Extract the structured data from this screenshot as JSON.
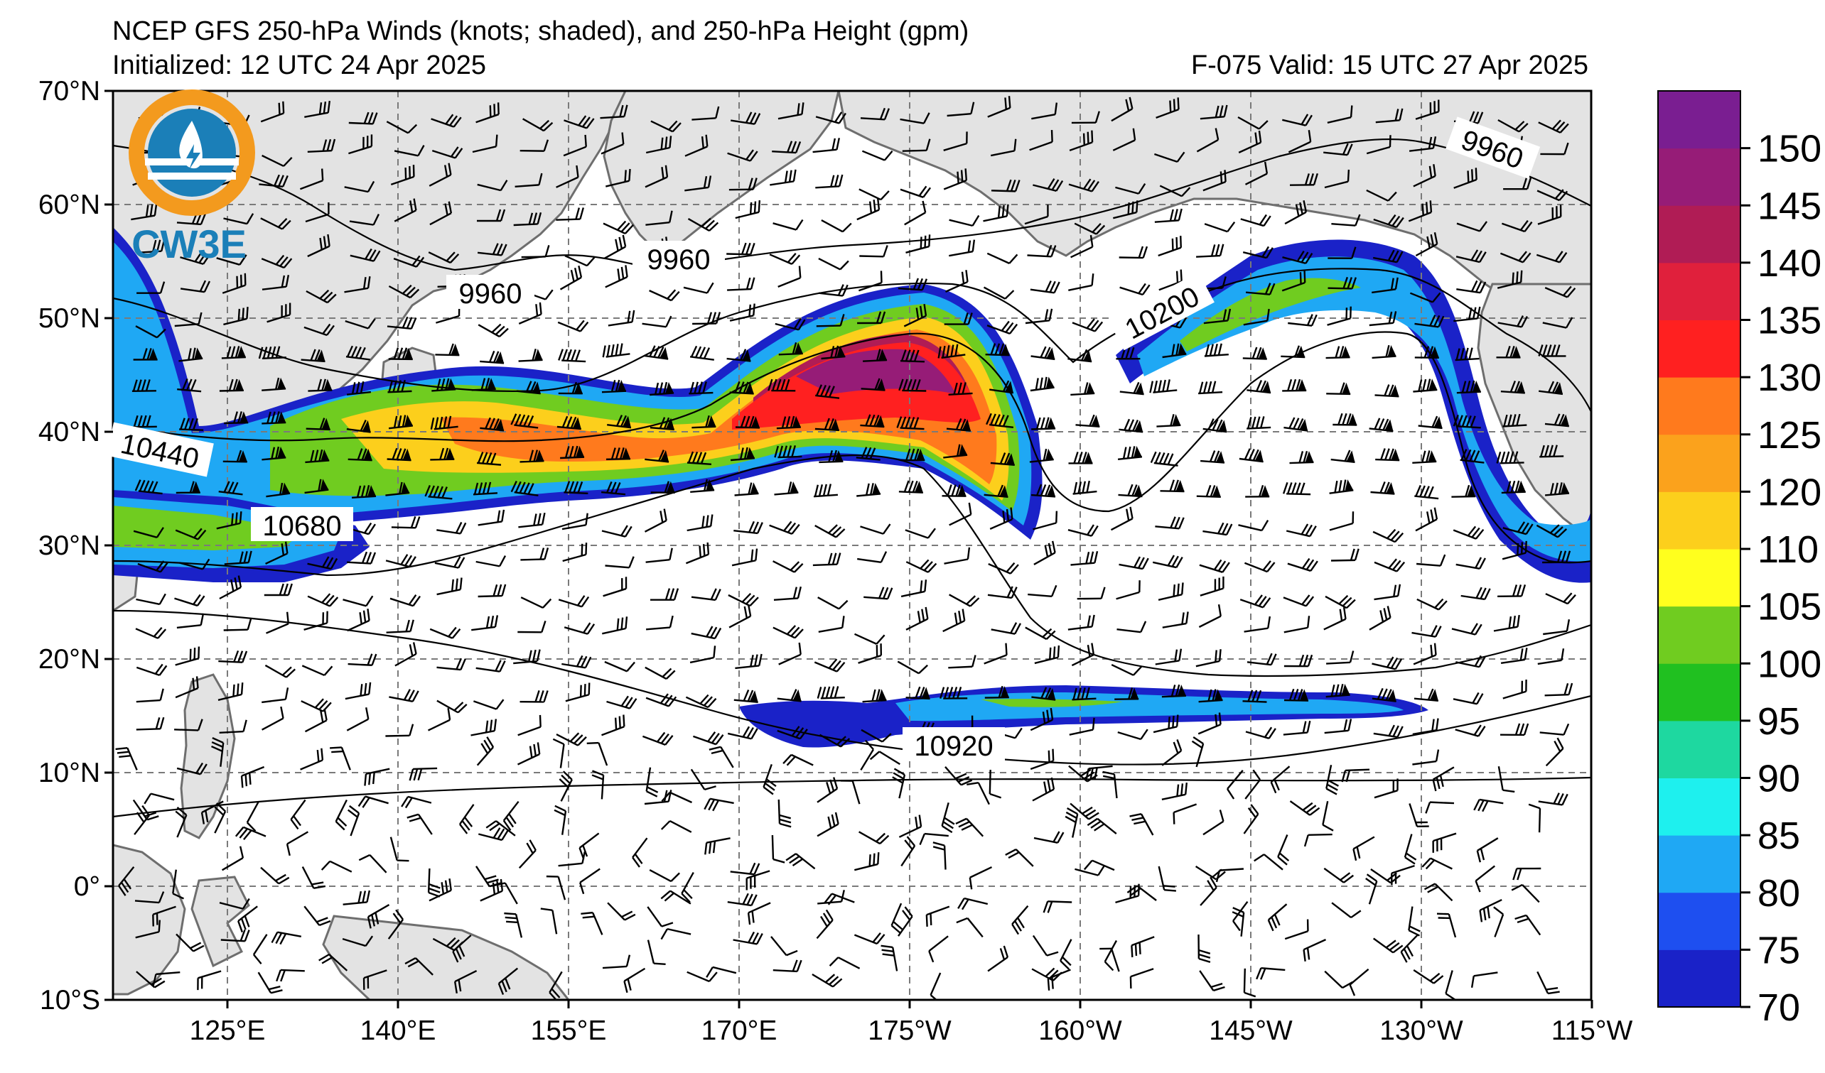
{
  "header": {
    "title": "NCEP GFS 250-hPa Winds (knots; shaded), and 250-hPa Height (gpm)",
    "initialized": "Initialized: 12 UTC 24 Apr 2025",
    "valid": "F-075  Valid: 15 UTC 27 Apr 2025"
  },
  "logo": {
    "text": "CW3E",
    "ring_color": "#f39a1e",
    "globe_color": "#1b7fb8"
  },
  "map": {
    "lat_labels": [
      "70°N",
      "60°N",
      "50°N",
      "40°N",
      "30°N",
      "20°N",
      "10°N",
      "0°",
      "10°S"
    ],
    "lon_labels": [
      "125°E",
      "140°E",
      "155°E",
      "170°E",
      "175°W",
      "160°W",
      "145°W",
      "130°W",
      "115°W"
    ],
    "contour_labels": [
      "9960",
      "9960",
      "9960",
      "10200",
      "10440",
      "10680",
      "10920"
    ],
    "land_color": "#e3e3e3",
    "coast_color": "#6e6e6e"
  },
  "colorbar": {
    "labels": [
      "70",
      "75",
      "80",
      "85",
      "90",
      "95",
      "100",
      "105",
      "110",
      "120",
      "125",
      "130",
      "135",
      "140",
      "145",
      "150"
    ],
    "colors": [
      "#1a22c8",
      "#1e4ff0",
      "#1fa8f4",
      "#1ef0ee",
      "#1ed8a0",
      "#20c020",
      "#70cc20",
      "#ffff1e",
      "#fccf1c",
      "#fba21c",
      "#ff7a1d",
      "#ff2020",
      "#e0203c",
      "#b01c55",
      "#961c77",
      "#7a1e91"
    ]
  }
}
